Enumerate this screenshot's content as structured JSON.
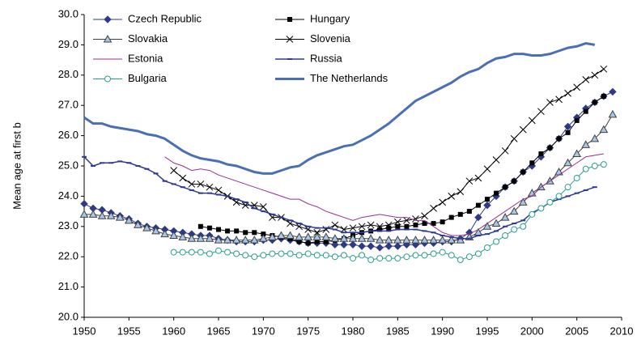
{
  "chart_data": {
    "type": "line",
    "y_label": "Mean age at first b",
    "x": [
      1950,
      1951,
      1952,
      1953,
      1954,
      1955,
      1956,
      1957,
      1958,
      1959,
      1960,
      1961,
      1962,
      1963,
      1964,
      1965,
      1966,
      1967,
      1968,
      1969,
      1970,
      1971,
      1972,
      1973,
      1974,
      1975,
      1976,
      1977,
      1978,
      1979,
      1980,
      1981,
      1982,
      1983,
      1984,
      1985,
      1986,
      1987,
      1988,
      1989,
      1990,
      1991,
      1992,
      1993,
      1994,
      1995,
      1996,
      1997,
      1998,
      1999,
      2000,
      2001,
      2002,
      2003,
      2004,
      2005,
      2006,
      2007,
      2008,
      2009
    ],
    "xlim": [
      1950,
      2010
    ],
    "xticks": [
      1950,
      1955,
      1960,
      1965,
      1970,
      1975,
      1980,
      1985,
      1990,
      1995,
      2000,
      2005,
      2010
    ],
    "ylim": [
      20,
      30
    ],
    "yticks": [
      {
        "value": 20,
        "label": "20.0"
      },
      {
        "value": 21,
        "label": "21.0"
      },
      {
        "value": 22,
        "label": "22.0"
      },
      {
        "value": 23,
        "label": "23.0"
      },
      {
        "value": 24,
        "label": "24.0"
      },
      {
        "value": 25,
        "label": "25.0"
      },
      {
        "value": 26,
        "label": "26.0"
      },
      {
        "value": 27,
        "label": "27.0"
      },
      {
        "value": 28,
        "label": "28.0"
      },
      {
        "value": 29,
        "label": "29.0"
      },
      {
        "value": 30,
        "label": "30.0"
      }
    ],
    "series": [
      {
        "name": "Czech Republic",
        "color": "#2e3a87",
        "marker": "diamond",
        "marker_fill": "#2e3a87",
        "width": 1,
        "values": [
          23.75,
          23.6,
          23.55,
          23.45,
          23.35,
          23.25,
          23.1,
          23.0,
          22.95,
          22.9,
          22.85,
          22.8,
          22.75,
          22.7,
          22.7,
          22.6,
          22.55,
          22.5,
          22.5,
          22.5,
          22.55,
          22.55,
          22.6,
          22.55,
          22.5,
          22.45,
          22.45,
          22.45,
          22.4,
          22.4,
          22.4,
          22.35,
          22.35,
          22.3,
          22.35,
          22.35,
          22.4,
          22.4,
          22.45,
          22.45,
          22.5,
          22.5,
          22.6,
          22.8,
          23.3,
          23.7,
          24.0,
          24.3,
          24.5,
          24.8,
          25.0,
          25.3,
          25.6,
          25.9,
          26.3,
          26.6,
          26.9,
          27.1,
          27.3,
          27.45
        ]
      },
      {
        "name": "Hungary",
        "color": "#000000",
        "marker": "square",
        "marker_fill": "#000000",
        "width": 1,
        "values": [
          null,
          null,
          null,
          null,
          null,
          null,
          null,
          null,
          null,
          null,
          null,
          null,
          null,
          23.0,
          22.95,
          22.9,
          22.85,
          22.85,
          22.8,
          22.8,
          22.75,
          22.7,
          22.65,
          22.6,
          22.5,
          22.45,
          22.5,
          22.5,
          22.55,
          22.6,
          22.7,
          22.8,
          22.85,
          22.9,
          22.95,
          23.0,
          23.0,
          23.05,
          23.1,
          23.1,
          23.15,
          23.3,
          23.4,
          23.5,
          23.7,
          23.9,
          24.1,
          24.3,
          24.5,
          24.8,
          25.1,
          25.4,
          25.6,
          25.9,
          26.1,
          26.5,
          26.8,
          27.1,
          27.3,
          null
        ]
      },
      {
        "name": "Slovakia",
        "color": "#404040",
        "marker": "triangle",
        "marker_fill": "#a6c8e6",
        "width": 1,
        "values": [
          23.4,
          23.4,
          23.35,
          23.35,
          23.3,
          23.2,
          23.05,
          22.95,
          22.85,
          22.75,
          22.7,
          22.65,
          22.6,
          22.6,
          22.6,
          22.55,
          22.55,
          22.55,
          22.55,
          22.55,
          22.6,
          22.65,
          22.7,
          22.7,
          22.65,
          22.65,
          22.65,
          22.65,
          22.6,
          22.6,
          22.6,
          22.6,
          22.6,
          22.55,
          22.55,
          22.55,
          22.55,
          22.55,
          22.55,
          22.55,
          22.55,
          22.55,
          22.55,
          22.65,
          22.8,
          23.0,
          23.1,
          23.3,
          23.5,
          23.8,
          24.1,
          24.3,
          24.5,
          24.8,
          25.1,
          25.4,
          25.7,
          25.9,
          26.2,
          26.7
        ]
      },
      {
        "name": "Slovenia",
        "color": "#000000",
        "marker": "x",
        "marker_fill": "none",
        "width": 1,
        "values": [
          null,
          null,
          null,
          null,
          null,
          null,
          null,
          null,
          null,
          null,
          24.85,
          24.6,
          24.4,
          24.4,
          24.3,
          24.2,
          24.0,
          23.8,
          23.7,
          23.7,
          23.65,
          23.3,
          23.3,
          23.1,
          23.0,
          22.9,
          22.8,
          22.9,
          23.05,
          22.9,
          22.95,
          23.0,
          23.05,
          23.0,
          23.05,
          23.15,
          23.2,
          23.25,
          23.35,
          23.6,
          23.8,
          24.0,
          24.15,
          24.5,
          24.6,
          24.9,
          25.2,
          25.5,
          25.9,
          26.2,
          26.5,
          26.8,
          27.1,
          27.2,
          27.4,
          27.6,
          27.85,
          28.0,
          28.2,
          null
        ]
      },
      {
        "name": "Estonia",
        "color": "#93318f",
        "marker": "none",
        "marker_fill": "none",
        "width": 1,
        "values": [
          null,
          null,
          null,
          null,
          null,
          null,
          null,
          null,
          null,
          25.3,
          25.1,
          25.0,
          24.85,
          24.9,
          24.85,
          24.7,
          24.6,
          24.5,
          24.4,
          24.3,
          24.2,
          24.1,
          24.0,
          23.9,
          23.9,
          23.75,
          23.65,
          23.5,
          23.4,
          23.3,
          23.2,
          23.3,
          23.35,
          23.4,
          23.35,
          23.3,
          23.3,
          23.2,
          23.2,
          23.0,
          22.8,
          22.7,
          22.7,
          22.75,
          22.9,
          23.1,
          23.3,
          23.5,
          23.7,
          23.9,
          24.0,
          24.3,
          24.5,
          24.7,
          24.9,
          25.1,
          25.3,
          25.35,
          25.4,
          null
        ]
      },
      {
        "name": "Russia",
        "color": "#2f3a8f",
        "marker": "dash",
        "marker_fill": "#2f3a8f",
        "width": 1.5,
        "values": [
          25.3,
          25.0,
          25.1,
          25.1,
          25.15,
          25.1,
          25.0,
          24.9,
          24.75,
          24.5,
          24.4,
          24.3,
          24.2,
          24.1,
          24.1,
          24.05,
          24.0,
          23.9,
          23.8,
          23.6,
          23.5,
          23.4,
          23.3,
          23.2,
          23.1,
          23.0,
          22.95,
          22.95,
          22.9,
          22.8,
          22.8,
          22.8,
          22.85,
          22.85,
          22.85,
          22.9,
          22.9,
          22.9,
          22.85,
          22.8,
          22.7,
          22.65,
          22.6,
          22.6,
          22.7,
          22.75,
          22.85,
          23.0,
          23.1,
          23.2,
          23.45,
          23.6,
          23.8,
          23.9,
          24.0,
          24.1,
          24.2,
          24.3,
          null,
          null
        ]
      },
      {
        "name": "Bulgaria",
        "color": "#2a9d8f",
        "marker": "circle",
        "marker_fill": "#ffffff",
        "width": 1,
        "values": [
          null,
          null,
          null,
          null,
          null,
          null,
          null,
          null,
          null,
          null,
          22.15,
          22.15,
          22.15,
          22.15,
          22.1,
          22.2,
          22.15,
          22.1,
          22.05,
          22.0,
          22.05,
          22.1,
          22.1,
          22.1,
          22.05,
          22.1,
          22.05,
          22.05,
          22.0,
          22.05,
          21.95,
          22.05,
          21.9,
          21.95,
          21.95,
          21.95,
          22.0,
          22.05,
          22.05,
          22.1,
          22.15,
          22.05,
          21.9,
          22.0,
          22.1,
          22.3,
          22.5,
          22.7,
          22.9,
          23.0,
          23.4,
          23.6,
          23.8,
          24.0,
          24.3,
          24.6,
          24.9,
          25.0,
          25.05,
          null
        ]
      },
      {
        "name": "The Netherlands",
        "color": "#4a6fb5",
        "marker": "none",
        "marker_fill": "none",
        "width": 3,
        "values": [
          26.6,
          26.4,
          26.4,
          26.3,
          26.25,
          26.2,
          26.15,
          26.05,
          26.0,
          25.9,
          25.7,
          25.5,
          25.35,
          25.25,
          25.2,
          25.15,
          25.05,
          25.0,
          24.9,
          24.8,
          24.75,
          24.75,
          24.85,
          24.95,
          25.0,
          25.2,
          25.35,
          25.45,
          25.55,
          25.65,
          25.7,
          25.85,
          26.0,
          26.2,
          26.4,
          26.65,
          26.9,
          27.15,
          27.3,
          27.45,
          27.6,
          27.75,
          27.95,
          28.1,
          28.2,
          28.4,
          28.55,
          28.6,
          28.7,
          28.7,
          28.65,
          28.65,
          28.7,
          28.8,
          28.9,
          28.95,
          29.05,
          29.0,
          null,
          null
        ]
      }
    ]
  }
}
